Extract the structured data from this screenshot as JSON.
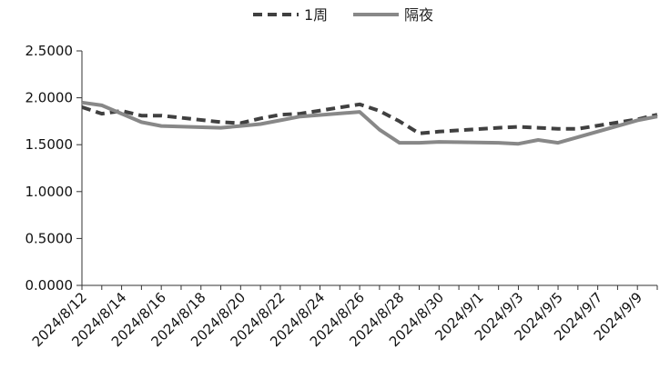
{
  "chart_data": {
    "type": "line",
    "title": "",
    "xlabel": "",
    "ylabel": "",
    "ylim": [
      0,
      2.5
    ],
    "yticks": [
      "0.0000",
      "0.5000",
      "1.0000",
      "1.5000",
      "2.0000",
      "2.5000"
    ],
    "xlim": [
      "2024-08-12",
      "2024-09-10"
    ],
    "xtick_labels": [
      "2024/8/12",
      "2024/8/14",
      "2024/8/16",
      "2024/8/18",
      "2024/8/20",
      "2024/8/22",
      "2024/8/24",
      "2024/8/26",
      "2024/8/28",
      "2024/8/30",
      "2024/9/1",
      "2024/9/3",
      "2024/9/5",
      "2024/9/7",
      "2024/9/9"
    ],
    "xtick_dates": [
      "2024-08-12",
      "2024-08-14",
      "2024-08-16",
      "2024-08-18",
      "2024-08-20",
      "2024-08-22",
      "2024-08-24",
      "2024-08-26",
      "2024-08-28",
      "2024-08-30",
      "2024-09-01",
      "2024-09-03",
      "2024-09-05",
      "2024-09-07",
      "2024-09-09"
    ],
    "grid": false,
    "legend_position": "top-center",
    "series": [
      {
        "name": "1周",
        "style": "dashed",
        "color": "#404040",
        "x": [
          "2024-08-12",
          "2024-08-13",
          "2024-08-14",
          "2024-08-15",
          "2024-08-16",
          "2024-08-19",
          "2024-08-20",
          "2024-08-21",
          "2024-08-22",
          "2024-08-23",
          "2024-08-26",
          "2024-08-27",
          "2024-08-28",
          "2024-08-29",
          "2024-08-30",
          "2024-09-02",
          "2024-09-03",
          "2024-09-04",
          "2024-09-05",
          "2024-09-06",
          "2024-09-09",
          "2024-09-10"
        ],
        "values": [
          1.9,
          1.83,
          1.86,
          1.81,
          1.81,
          1.74,
          1.73,
          1.78,
          1.82,
          1.83,
          1.93,
          1.86,
          1.75,
          1.62,
          1.64,
          1.68,
          1.69,
          1.68,
          1.67,
          1.67,
          1.77,
          1.82
        ]
      },
      {
        "name": "隔夜",
        "style": "solid",
        "color": "#888888",
        "x": [
          "2024-08-12",
          "2024-08-13",
          "2024-08-14",
          "2024-08-15",
          "2024-08-16",
          "2024-08-19",
          "2024-08-20",
          "2024-08-21",
          "2024-08-22",
          "2024-08-23",
          "2024-08-26",
          "2024-08-27",
          "2024-08-28",
          "2024-08-29",
          "2024-08-30",
          "2024-09-02",
          "2024-09-03",
          "2024-09-04",
          "2024-09-05",
          "2024-09-06",
          "2024-09-09",
          "2024-09-10"
        ],
        "values": [
          1.95,
          1.92,
          1.83,
          1.74,
          1.7,
          1.68,
          1.7,
          1.72,
          1.76,
          1.8,
          1.85,
          1.66,
          1.52,
          1.52,
          1.53,
          1.52,
          1.51,
          1.55,
          1.52,
          1.58,
          1.76,
          1.8
        ]
      }
    ]
  }
}
